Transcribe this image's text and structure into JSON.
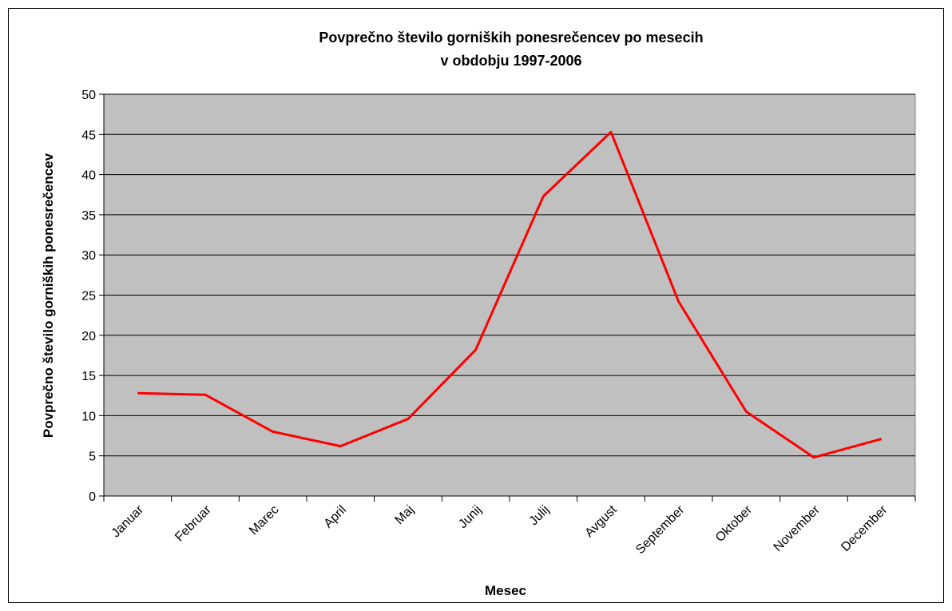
{
  "chart_data": {
    "type": "line",
    "title": [
      "Povprečno število gorniških ponesrečencev po mesecih",
      "v obdobju 1997-2006"
    ],
    "x_label": "Mesec",
    "y_label": "Povprečno število gorniških ponesrečencev",
    "categories": [
      "Januar",
      "Februar",
      "Marec",
      "April",
      "Maj",
      "Junij",
      "Julij",
      "Avgust",
      "September",
      "Oktober",
      "November",
      "December"
    ],
    "values": [
      12.8,
      12.6,
      8.0,
      6.2,
      9.6,
      18.2,
      37.3,
      45.3,
      24.2,
      10.5,
      4.8,
      7.1
    ],
    "color": "#ff0000",
    "ylim": [
      0,
      50
    ],
    "yticks": [
      0,
      5,
      10,
      15,
      20,
      25,
      30,
      35,
      40,
      45,
      50
    ],
    "grid": true
  }
}
